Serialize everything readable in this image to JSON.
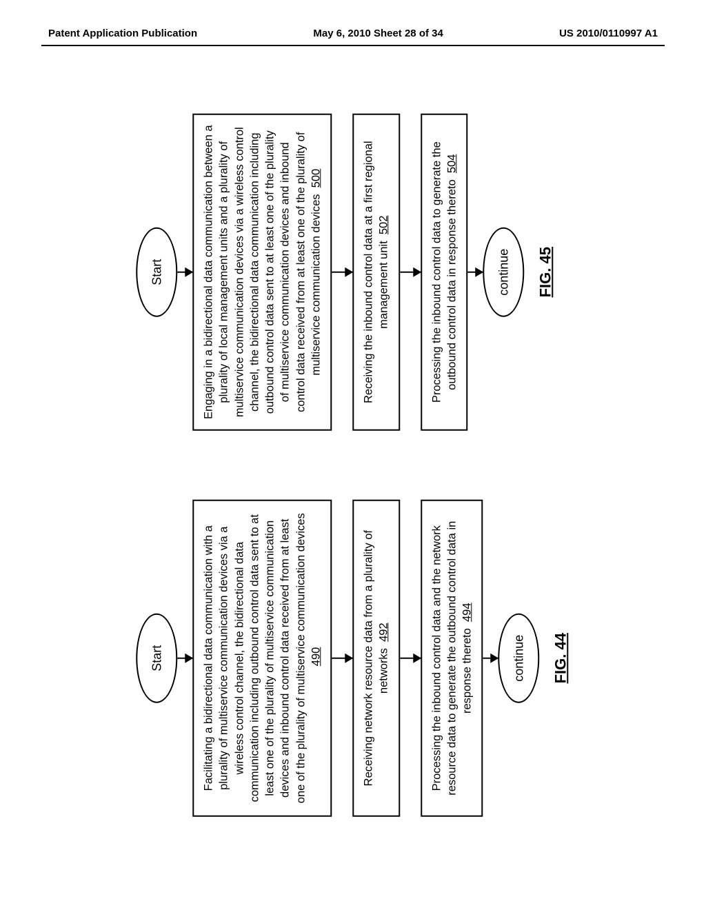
{
  "header": {
    "left": "Patent Application Publication",
    "center": "May 6, 2010  Sheet 28 of 34",
    "right": "US 2010/0110997 A1"
  },
  "fig44": {
    "start": "Start",
    "step1_text": "Facilitating a bidirectional data communication with a plurality of multiservice communication devices via a wireless control channel, the bidirectional data communication including outbound control data sent to at least one of the plurality of multiservice communication devices and inbound control data received from at least one of the plurality of multiservice communication devices",
    "step1_ref": "490",
    "step2_text": "Receiving network resource data from a plurality of networks",
    "step2_ref": "492",
    "step3_text": "Processing  the inbound control data and the network resource data to generate the outbound control data in response thereto",
    "step3_ref": "494",
    "continue": "continue",
    "label": "FIG. 44"
  },
  "fig45": {
    "start": "Start",
    "step1_text": "Engaging in a bidirectional data communication between a plurality of local management units and a plurality of multiservice communication devices via a wireless control channel, the bidirectional data communication including outbound control data sent to at least one of the plurality of multiservice communication devices and inbound control data received from at least one of the plurality of multiservice communication devices",
    "step1_ref": "500",
    "step2_text": "Receiving the inbound control data at a first regional management unit",
    "step2_ref": "502",
    "step3_text": "Processing the inbound control data to generate the outbound control data in response thereto",
    "step3_ref": "504",
    "continue": "continue",
    "label": "FIG. 45"
  },
  "colors": {
    "stroke": "#000000",
    "background": "#ffffff"
  }
}
